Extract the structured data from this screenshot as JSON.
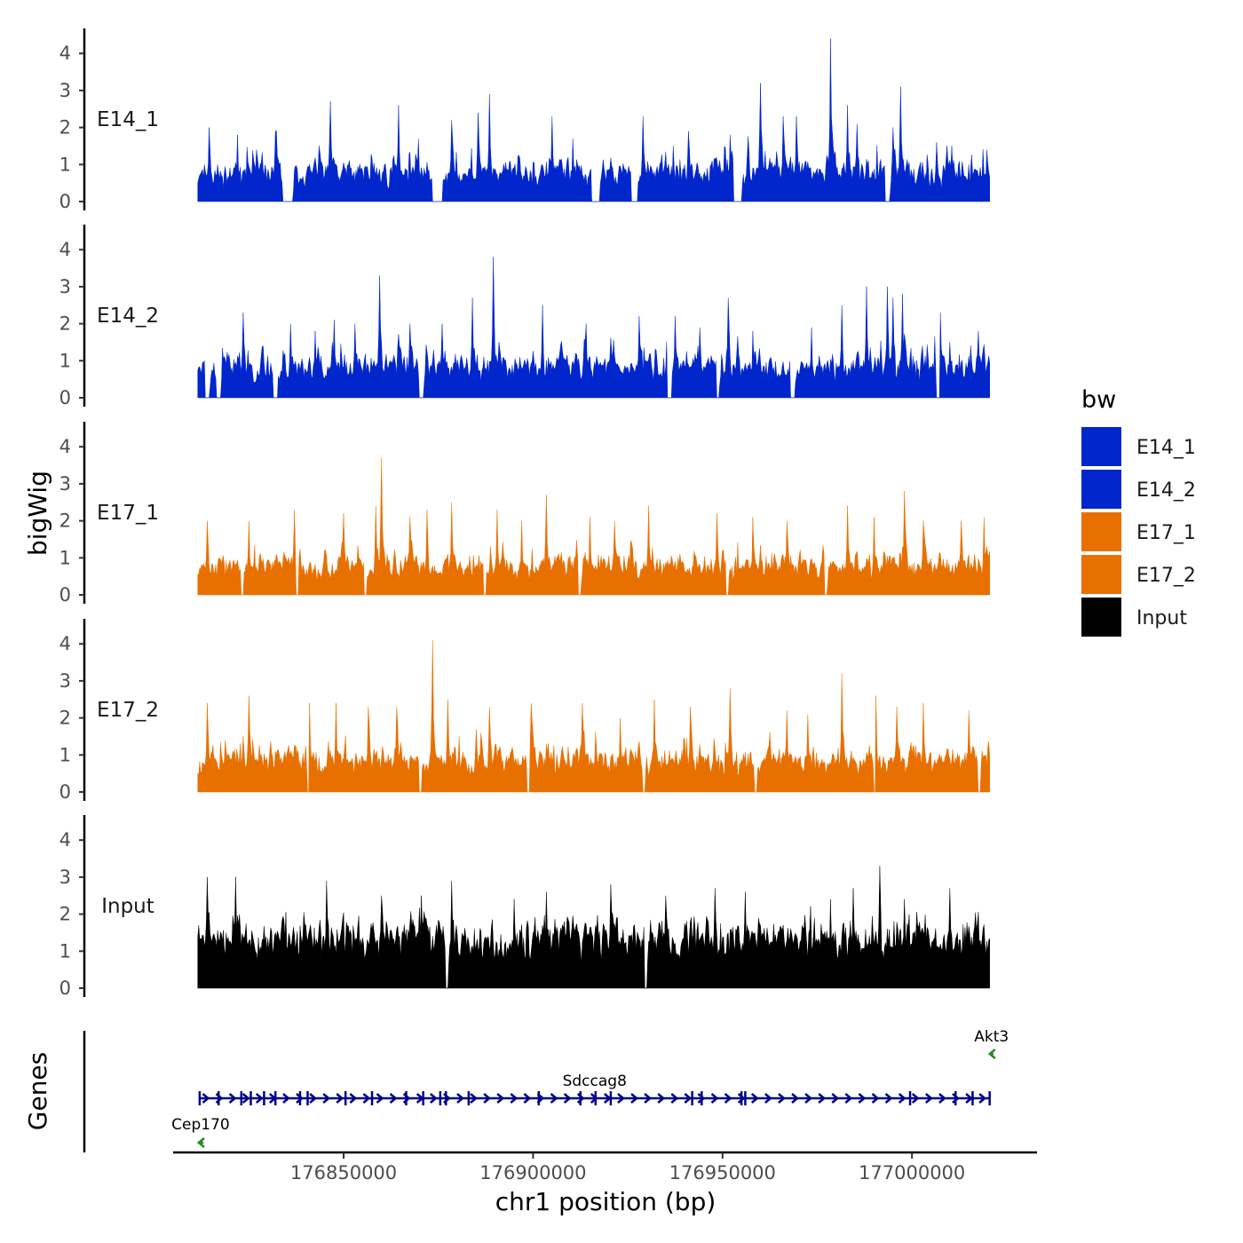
{
  "chart_data": {
    "type": "area",
    "title": "",
    "ylabel_tracks": "bigWig",
    "ylabel_genes": "Genes",
    "xlabel": "chr1 position (bp)",
    "chromosome": "chr1",
    "xlim": [
      176805000,
      177033000
    ],
    "data_range": [
      176811500,
      177020500
    ],
    "ylim": [
      0,
      4.5
    ],
    "yticks": [
      0,
      1,
      2,
      3,
      4
    ],
    "xticks": [
      176850000,
      176900000,
      176950000,
      177000000
    ],
    "xtick_labels": [
      "176850000",
      "176900000",
      "176950000",
      "177000000"
    ],
    "legend": {
      "title": "bw",
      "entries": [
        {
          "label": "E14_1",
          "color": "#0026CC"
        },
        {
          "label": "E14_2",
          "color": "#0026CC"
        },
        {
          "label": "E17_1",
          "color": "#E87000"
        },
        {
          "label": "E17_2",
          "color": "#E87000"
        },
        {
          "label": "Input",
          "color": "#000000"
        }
      ]
    },
    "series": [
      {
        "name": "E14_1",
        "color": "#0026CC",
        "seed": 11,
        "base": 0.55,
        "noise": 0.75,
        "gaps": [
          [
            176834000,
            176836500
          ],
          [
            176873500,
            176876000
          ],
          [
            176915500,
            176917500
          ],
          [
            176926000,
            176927500
          ],
          [
            176953000,
            176955000
          ],
          [
            176993000,
            176994000
          ]
        ],
        "peaks": [
          [
            176814500,
            2.0
          ],
          [
            176822000,
            1.8
          ],
          [
            176832000,
            1.9
          ],
          [
            176846500,
            2.7
          ],
          [
            176864500,
            2.6
          ],
          [
            176878500,
            2.2
          ],
          [
            176885500,
            2.4
          ],
          [
            176888500,
            2.9
          ],
          [
            176905000,
            2.3
          ],
          [
            176910500,
            1.7
          ],
          [
            176929000,
            2.3
          ],
          [
            176941000,
            1.9
          ],
          [
            176952000,
            1.8
          ],
          [
            176960000,
            3.2
          ],
          [
            176966000,
            2.3
          ],
          [
            176969500,
            2.3
          ],
          [
            176978500,
            4.4
          ],
          [
            176983000,
            2.6
          ],
          [
            176985500,
            2.1
          ],
          [
            176995000,
            2.0
          ],
          [
            176997000,
            3.1
          ],
          [
            177006500,
            1.6
          ],
          [
            177010500,
            1.5
          ],
          [
            177015000,
            1.0
          ]
        ]
      },
      {
        "name": "E14_2",
        "color": "#0026CC",
        "seed": 23,
        "base": 0.6,
        "noise": 0.8,
        "gaps": [
          [
            176813500,
            176814500
          ],
          [
            176816500,
            176817500
          ],
          [
            176831500,
            176832500
          ],
          [
            176870000,
            176871000
          ],
          [
            176935500,
            176936500
          ],
          [
            176948500,
            176949000
          ],
          [
            176968000,
            176969000
          ],
          [
            177006500,
            177007500
          ]
        ],
        "peaks": [
          [
            176823500,
            2.3
          ],
          [
            176836000,
            2.0
          ],
          [
            176842500,
            1.8
          ],
          [
            176847500,
            2.1
          ],
          [
            176853000,
            2.0
          ],
          [
            176859500,
            3.3
          ],
          [
            176867500,
            2.0
          ],
          [
            176876000,
            2.0
          ],
          [
            176884000,
            2.7
          ],
          [
            176889500,
            3.8
          ],
          [
            176902500,
            2.5
          ],
          [
            176914000,
            2.0
          ],
          [
            176928000,
            2.2
          ],
          [
            176937500,
            2.2
          ],
          [
            176944000,
            1.9
          ],
          [
            176951500,
            2.7
          ],
          [
            176958000,
            1.8
          ],
          [
            176973500,
            1.9
          ],
          [
            176981500,
            2.5
          ],
          [
            176988000,
            3.0
          ],
          [
            176993500,
            3.0
          ],
          [
            176995000,
            2.7
          ],
          [
            176997500,
            2.8
          ],
          [
            177007500,
            2.3
          ],
          [
            177017500,
            1.8
          ]
        ]
      },
      {
        "name": "E17_1",
        "color": "#E87000",
        "seed": 37,
        "base": 0.6,
        "noise": 0.7,
        "gaps": [
          [
            176823000,
            176823500
          ],
          [
            176837500,
            176838000
          ],
          [
            176855500,
            176856000
          ],
          [
            176887000,
            176887500
          ],
          [
            176912000,
            176912500
          ],
          [
            176951000,
            176951500
          ],
          [
            176977000,
            176977500
          ]
        ],
        "peaks": [
          [
            176814000,
            2.0
          ],
          [
            176825000,
            2.0
          ],
          [
            176837000,
            2.3
          ],
          [
            176850000,
            2.2
          ],
          [
            176858500,
            2.4
          ],
          [
            176860000,
            3.7
          ],
          [
            176867500,
            2.1
          ],
          [
            176872000,
            2.3
          ],
          [
            176878500,
            2.5
          ],
          [
            176890500,
            2.3
          ],
          [
            176897000,
            2.0
          ],
          [
            176903500,
            2.7
          ],
          [
            176915000,
            2.1
          ],
          [
            176921500,
            2.0
          ],
          [
            176930500,
            2.4
          ],
          [
            176948500,
            2.2
          ],
          [
            176958000,
            2.1
          ],
          [
            176967000,
            2.0
          ],
          [
            176983000,
            2.4
          ],
          [
            176990000,
            2.1
          ],
          [
            176998000,
            2.8
          ],
          [
            177003000,
            2.0
          ],
          [
            177013000,
            2.0
          ],
          [
            177019000,
            2.1
          ]
        ]
      },
      {
        "name": "E17_2",
        "color": "#E87000",
        "seed": 53,
        "base": 0.65,
        "noise": 0.75,
        "gaps": [
          [
            176840500,
            176841000
          ],
          [
            176870000,
            176870500
          ],
          [
            176898500,
            176899000
          ],
          [
            176929000,
            176929500
          ],
          [
            176958500,
            176959000
          ],
          [
            176990000,
            176990500
          ],
          [
            177017500,
            177018000
          ]
        ],
        "peaks": [
          [
            176814000,
            2.4
          ],
          [
            176825000,
            2.6
          ],
          [
            176841000,
            2.4
          ],
          [
            176848000,
            2.4
          ],
          [
            176856500,
            2.3
          ],
          [
            176864000,
            2.3
          ],
          [
            176873500,
            4.1
          ],
          [
            176877500,
            2.5
          ],
          [
            176888500,
            2.3
          ],
          [
            176899500,
            2.4
          ],
          [
            176913000,
            2.4
          ],
          [
            176923000,
            2.0
          ],
          [
            176932000,
            2.5
          ],
          [
            176941500,
            2.3
          ],
          [
            176952000,
            2.8
          ],
          [
            176967000,
            2.2
          ],
          [
            176972500,
            2.1
          ],
          [
            176981500,
            3.2
          ],
          [
            176990500,
            2.6
          ],
          [
            176996000,
            2.3
          ],
          [
            177003000,
            2.4
          ],
          [
            177015000,
            2.2
          ]
        ]
      },
      {
        "name": "Input",
        "color": "#000000",
        "seed": 71,
        "base": 1.3,
        "noise": 0.65,
        "gaps": [
          [
            176877000,
            176877500
          ],
          [
            176929500,
            176930000
          ]
        ],
        "peaks": [
          [
            176814000,
            3.0
          ],
          [
            176821500,
            3.0
          ],
          [
            176845500,
            2.9
          ],
          [
            176860000,
            2.5
          ],
          [
            176870500,
            2.5
          ],
          [
            176878500,
            2.9
          ],
          [
            176895000,
            2.4
          ],
          [
            176903500,
            2.6
          ],
          [
            176920500,
            2.8
          ],
          [
            176935000,
            2.5
          ],
          [
            176948000,
            2.7
          ],
          [
            176956000,
            2.6
          ],
          [
            176978500,
            2.4
          ],
          [
            176984500,
            2.7
          ],
          [
            176991500,
            3.3
          ],
          [
            176998000,
            2.4
          ],
          [
            177010000,
            2.7
          ]
        ]
      }
    ],
    "genes": [
      {
        "name": "Cep170",
        "start": 176811500,
        "end": 176813000,
        "strand": "-",
        "color": "#228B22"
      },
      {
        "name": "Sdccag8",
        "start": 176812000,
        "end": 177020500,
        "strand": "+",
        "color": "#00008B",
        "exons": [
          176812000,
          176817000,
          176823000,
          176825500,
          176829000,
          176832000,
          176838500,
          176840500,
          176850500,
          176857500,
          176866500,
          176871000,
          176875500,
          176877000,
          176883000,
          176901500,
          176912500,
          176916500,
          176920500,
          176942000,
          176944500,
          176955000,
          176956000,
          176999500,
          177011500,
          177016000,
          177020500
        ]
      },
      {
        "name": "Akt3",
        "start": 177020500,
        "end": 177021500,
        "strand": "-",
        "color": "#228B22"
      }
    ]
  }
}
